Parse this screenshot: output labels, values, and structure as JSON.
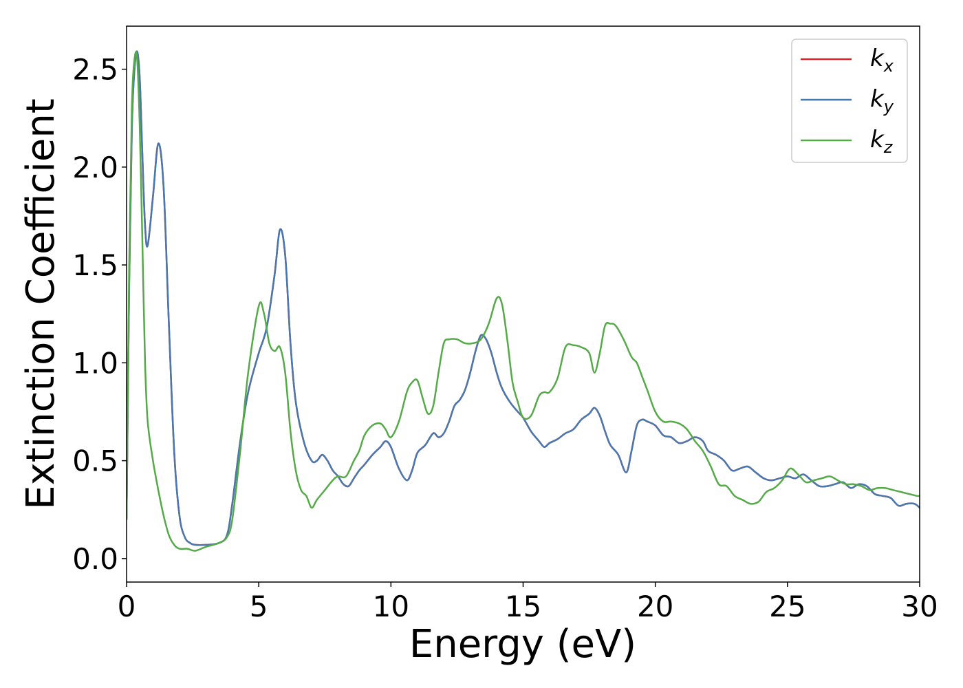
{
  "chart_data": {
    "type": "line",
    "xlabel": "Energy (eV)",
    "ylabel": "Extinction Coefficient",
    "xlim": [
      0,
      30
    ],
    "ylim": [
      -0.12,
      2.72
    ],
    "xticks": [
      0,
      5,
      10,
      15,
      20,
      25,
      30
    ],
    "xtick_labels": [
      "0",
      "5",
      "10",
      "15",
      "20",
      "25",
      "30"
    ],
    "yticks": [
      0.0,
      0.5,
      1.0,
      1.5,
      2.0,
      2.5
    ],
    "ytick_labels": [
      "0.0",
      "0.5",
      "1.0",
      "1.5",
      "2.0",
      "2.5"
    ],
    "grid": false,
    "legend_position": "top-right",
    "series": [
      {
        "name": "k",
        "subscript": "x",
        "color": "#d62728",
        "x": [
          0,
          0.1,
          0.2,
          0.3,
          0.4,
          0.5,
          0.6,
          0.7,
          0.8,
          1.0,
          1.2,
          1.4,
          1.6,
          1.8,
          2.0,
          2.2,
          2.4,
          2.6,
          3.0,
          3.5,
          3.8,
          4.0,
          4.3,
          4.6,
          5.0,
          5.3,
          5.6,
          5.8,
          6.0,
          6.2,
          6.4,
          6.7,
          7.0,
          7.2,
          7.4,
          7.6,
          7.8,
          8.0,
          8.2,
          8.4,
          8.6,
          8.8,
          9.0,
          9.3,
          9.6,
          9.8,
          10.0,
          10.3,
          10.6,
          10.8,
          11.0,
          11.3,
          11.6,
          11.8,
          12.0,
          12.2,
          12.4,
          12.6,
          12.8,
          13.0,
          13.2,
          13.4,
          13.6,
          13.8,
          14.0,
          14.2,
          14.5,
          14.8,
          15.0,
          15.3,
          15.6,
          15.8,
          16.0,
          16.3,
          16.6,
          16.9,
          17.2,
          17.5,
          17.7,
          17.9,
          18.1,
          18.3,
          18.6,
          18.9,
          19.1,
          19.3,
          19.5,
          19.7,
          20.0,
          20.3,
          20.6,
          20.9,
          21.2,
          21.5,
          21.8,
          22.0,
          22.3,
          22.6,
          22.9,
          23.2,
          23.5,
          23.8,
          24.1,
          24.4,
          24.7,
          25.0,
          25.3,
          25.6,
          25.9,
          26.2,
          26.5,
          26.8,
          27.1,
          27.4,
          27.7,
          28.0,
          28.3,
          28.6,
          28.9,
          29.2,
          29.5,
          29.8,
          30
        ],
        "y": [
          0.2,
          1.4,
          2.2,
          2.5,
          2.59,
          2.45,
          2.05,
          1.7,
          1.6,
          1.85,
          2.12,
          1.9,
          1.2,
          0.55,
          0.22,
          0.11,
          0.08,
          0.07,
          0.07,
          0.08,
          0.12,
          0.28,
          0.6,
          0.85,
          1.05,
          1.18,
          1.45,
          1.68,
          1.55,
          1.1,
          0.8,
          0.6,
          0.5,
          0.5,
          0.53,
          0.5,
          0.45,
          0.42,
          0.38,
          0.37,
          0.41,
          0.45,
          0.48,
          0.53,
          0.57,
          0.6,
          0.57,
          0.46,
          0.4,
          0.45,
          0.54,
          0.58,
          0.64,
          0.62,
          0.64,
          0.7,
          0.78,
          0.81,
          0.86,
          0.95,
          1.06,
          1.14,
          1.12,
          1.05,
          0.95,
          0.87,
          0.8,
          0.75,
          0.72,
          0.65,
          0.6,
          0.57,
          0.59,
          0.61,
          0.64,
          0.66,
          0.71,
          0.74,
          0.77,
          0.73,
          0.65,
          0.58,
          0.53,
          0.44,
          0.55,
          0.68,
          0.71,
          0.7,
          0.68,
          0.63,
          0.62,
          0.59,
          0.6,
          0.62,
          0.6,
          0.55,
          0.53,
          0.5,
          0.45,
          0.46,
          0.47,
          0.44,
          0.41,
          0.4,
          0.41,
          0.42,
          0.41,
          0.43,
          0.4,
          0.37,
          0.37,
          0.38,
          0.39,
          0.36,
          0.38,
          0.37,
          0.33,
          0.32,
          0.31,
          0.27,
          0.28,
          0.28,
          0.26
        ]
      },
      {
        "name": "k",
        "subscript": "y",
        "color": "#4878b0",
        "x": [
          0,
          0.1,
          0.2,
          0.3,
          0.4,
          0.5,
          0.6,
          0.7,
          0.8,
          1.0,
          1.2,
          1.4,
          1.6,
          1.8,
          2.0,
          2.2,
          2.4,
          2.6,
          3.0,
          3.5,
          3.8,
          4.0,
          4.3,
          4.6,
          5.0,
          5.3,
          5.6,
          5.8,
          6.0,
          6.2,
          6.4,
          6.7,
          7.0,
          7.2,
          7.4,
          7.6,
          7.8,
          8.0,
          8.2,
          8.4,
          8.6,
          8.8,
          9.0,
          9.3,
          9.6,
          9.8,
          10.0,
          10.3,
          10.6,
          10.8,
          11.0,
          11.3,
          11.6,
          11.8,
          12.0,
          12.2,
          12.4,
          12.6,
          12.8,
          13.0,
          13.2,
          13.4,
          13.6,
          13.8,
          14.0,
          14.2,
          14.5,
          14.8,
          15.0,
          15.3,
          15.6,
          15.8,
          16.0,
          16.3,
          16.6,
          16.9,
          17.2,
          17.5,
          17.7,
          17.9,
          18.1,
          18.3,
          18.6,
          18.9,
          19.1,
          19.3,
          19.5,
          19.7,
          20.0,
          20.3,
          20.6,
          20.9,
          21.2,
          21.5,
          21.8,
          22.0,
          22.3,
          22.6,
          22.9,
          23.2,
          23.5,
          23.8,
          24.1,
          24.4,
          24.7,
          25.0,
          25.3,
          25.6,
          25.9,
          26.2,
          26.5,
          26.8,
          27.1,
          27.4,
          27.7,
          28.0,
          28.3,
          28.6,
          28.9,
          29.2,
          29.5,
          29.8,
          30
        ],
        "y": [
          0.2,
          1.4,
          2.2,
          2.5,
          2.59,
          2.45,
          2.05,
          1.7,
          1.6,
          1.85,
          2.12,
          1.9,
          1.2,
          0.55,
          0.22,
          0.11,
          0.08,
          0.07,
          0.07,
          0.08,
          0.12,
          0.28,
          0.6,
          0.85,
          1.05,
          1.18,
          1.45,
          1.68,
          1.55,
          1.1,
          0.8,
          0.6,
          0.5,
          0.5,
          0.53,
          0.5,
          0.45,
          0.42,
          0.38,
          0.37,
          0.41,
          0.45,
          0.48,
          0.53,
          0.57,
          0.6,
          0.57,
          0.46,
          0.4,
          0.45,
          0.54,
          0.58,
          0.64,
          0.62,
          0.64,
          0.7,
          0.78,
          0.81,
          0.86,
          0.95,
          1.06,
          1.14,
          1.12,
          1.05,
          0.95,
          0.87,
          0.8,
          0.75,
          0.72,
          0.65,
          0.6,
          0.57,
          0.59,
          0.61,
          0.64,
          0.66,
          0.71,
          0.74,
          0.77,
          0.73,
          0.65,
          0.58,
          0.53,
          0.44,
          0.55,
          0.68,
          0.71,
          0.7,
          0.68,
          0.63,
          0.62,
          0.59,
          0.6,
          0.62,
          0.6,
          0.55,
          0.53,
          0.5,
          0.45,
          0.46,
          0.47,
          0.44,
          0.41,
          0.4,
          0.41,
          0.42,
          0.41,
          0.43,
          0.4,
          0.37,
          0.37,
          0.38,
          0.39,
          0.36,
          0.38,
          0.37,
          0.33,
          0.32,
          0.31,
          0.27,
          0.28,
          0.28,
          0.26
        ]
      },
      {
        "name": "k",
        "subscript": "z",
        "color": "#55aa48",
        "x": [
          0,
          0.1,
          0.2,
          0.3,
          0.4,
          0.5,
          0.6,
          0.7,
          0.8,
          1.0,
          1.2,
          1.4,
          1.6,
          1.8,
          2.0,
          2.3,
          2.6,
          3.0,
          3.5,
          3.8,
          4.0,
          4.3,
          4.6,
          5.0,
          5.2,
          5.4,
          5.6,
          5.8,
          6.0,
          6.2,
          6.4,
          6.6,
          6.8,
          7.0,
          7.2,
          7.5,
          7.8,
          8.0,
          8.3,
          8.6,
          8.8,
          9.0,
          9.3,
          9.6,
          9.8,
          10.0,
          10.3,
          10.6,
          10.8,
          11.0,
          11.2,
          11.4,
          11.6,
          11.8,
          12.0,
          12.2,
          12.5,
          12.8,
          13.1,
          13.4,
          13.7,
          14.0,
          14.2,
          14.4,
          14.6,
          14.8,
          15.0,
          15.3,
          15.6,
          15.8,
          16.0,
          16.3,
          16.6,
          16.9,
          17.2,
          17.5,
          17.7,
          17.9,
          18.1,
          18.3,
          18.5,
          18.8,
          19.1,
          19.3,
          19.5,
          19.7,
          20.0,
          20.3,
          20.6,
          20.9,
          21.2,
          21.5,
          21.8,
          22.1,
          22.4,
          22.7,
          23.0,
          23.3,
          23.6,
          23.9,
          24.2,
          24.5,
          24.8,
          25.1,
          25.4,
          25.7,
          26.0,
          26.3,
          26.6,
          26.9,
          27.2,
          27.5,
          27.8,
          28.1,
          28.4,
          28.7,
          29.0,
          29.3,
          29.6,
          29.9,
          30
        ],
        "y": [
          0.2,
          1.5,
          2.3,
          2.55,
          2.55,
          2.2,
          1.6,
          1.0,
          0.7,
          0.5,
          0.35,
          0.22,
          0.12,
          0.07,
          0.05,
          0.05,
          0.04,
          0.06,
          0.08,
          0.11,
          0.2,
          0.55,
          0.95,
          1.29,
          1.25,
          1.1,
          1.06,
          1.08,
          0.95,
          0.65,
          0.45,
          0.35,
          0.32,
          0.26,
          0.3,
          0.35,
          0.4,
          0.42,
          0.42,
          0.5,
          0.55,
          0.63,
          0.68,
          0.69,
          0.66,
          0.62,
          0.7,
          0.85,
          0.9,
          0.91,
          0.82,
          0.74,
          0.78,
          0.95,
          1.1,
          1.12,
          1.12,
          1.1,
          1.1,
          1.12,
          1.2,
          1.33,
          1.3,
          1.12,
          0.9,
          0.8,
          0.72,
          0.73,
          0.83,
          0.85,
          0.85,
          0.92,
          1.08,
          1.09,
          1.08,
          1.05,
          0.95,
          1.05,
          1.19,
          1.2,
          1.19,
          1.12,
          1.03,
          1.0,
          0.93,
          0.86,
          0.75,
          0.7,
          0.7,
          0.69,
          0.66,
          0.6,
          0.55,
          0.47,
          0.38,
          0.37,
          0.32,
          0.3,
          0.28,
          0.29,
          0.34,
          0.36,
          0.4,
          0.46,
          0.43,
          0.39,
          0.4,
          0.41,
          0.42,
          0.4,
          0.38,
          0.38,
          0.37,
          0.35,
          0.36,
          0.36,
          0.35,
          0.34,
          0.33,
          0.32,
          0.32
        ]
      }
    ]
  }
}
